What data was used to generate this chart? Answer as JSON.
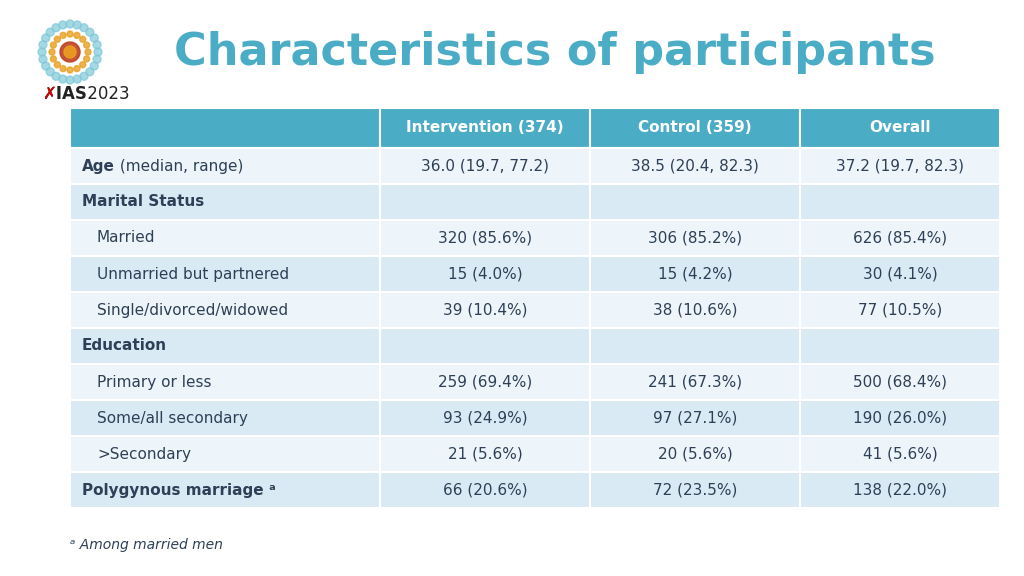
{
  "title": "Characteristics of participants",
  "title_color": "#4BACC6",
  "background_color": "#FFFFFF",
  "header_bg_color": "#4BACC6",
  "header_text_color": "#FFFFFF",
  "row_bg_light": "#DAEAF4",
  "row_bg_white": "#EEF5FA",
  "section_bg": "#DAEAF4",
  "columns": [
    "",
    "Intervention (374)",
    "Control (359)",
    "Overall"
  ],
  "rows": [
    {
      "label": "Age (median, range)",
      "bold_prefix": "Age",
      "values": [
        "36.0 (19.7, 77.2)",
        "38.5 (20.4, 82.3)",
        "37.2 (19.7, 82.3)"
      ],
      "style": "age",
      "indent": false
    },
    {
      "label": "Marital Status",
      "bold_prefix": "",
      "values": [
        "",
        "",
        ""
      ],
      "style": "section",
      "indent": false
    },
    {
      "label": "Married",
      "bold_prefix": "",
      "values": [
        "320 (85.6%)",
        "306 (85.2%)",
        "626 (85.4%)"
      ],
      "style": "normal",
      "indent": true
    },
    {
      "label": "Unmarried but partnered",
      "bold_prefix": "",
      "values": [
        "15 (4.0%)",
        "15 (4.2%)",
        "30 (4.1%)"
      ],
      "style": "normal",
      "indent": true
    },
    {
      "label": "Single/divorced/widowed",
      "bold_prefix": "",
      "values": [
        "39 (10.4%)",
        "38 (10.6%)",
        "77 (10.5%)"
      ],
      "style": "normal",
      "indent": true
    },
    {
      "label": "Education",
      "bold_prefix": "",
      "values": [
        "",
        "",
        ""
      ],
      "style": "section",
      "indent": false
    },
    {
      "label": "Primary or less",
      "bold_prefix": "",
      "values": [
        "259 (69.4%)",
        "241 (67.3%)",
        "500 (68.4%)"
      ],
      "style": "normal",
      "indent": true
    },
    {
      "label": "Some/all secondary",
      "bold_prefix": "",
      "values": [
        "93 (24.9%)",
        "97 (27.1%)",
        "190 (26.0%)"
      ],
      "style": "normal",
      "indent": true
    },
    {
      "label": ">Secondary",
      "bold_prefix": "",
      "values": [
        "21 (5.6%)",
        "20 (5.6%)",
        "41 (5.6%)"
      ],
      "style": "normal",
      "indent": true
    },
    {
      "label": "Polygynous marriage ᵃ",
      "bold_prefix": "Polygynous marriage ᵃ",
      "values": [
        "66 (20.6%)",
        "72 (23.5%)",
        "138 (22.0%)"
      ],
      "style": "bold_row",
      "indent": false
    }
  ],
  "footnote": "ᵃ Among married men",
  "text_color": "#2E4057",
  "border_color": "#FFFFFF"
}
